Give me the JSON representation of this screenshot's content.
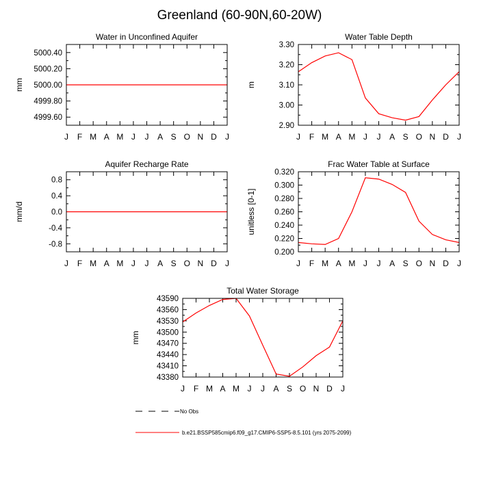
{
  "page": {
    "title": "Greenland (60-90N,60-20W)"
  },
  "chart_data": [
    {
      "type": "line",
      "title": "Water in Unconfined Aquifer",
      "ylabel": "mm",
      "categories": [
        "J",
        "F",
        "M",
        "A",
        "M",
        "J",
        "J",
        "A",
        "S",
        "O",
        "N",
        "D",
        "J"
      ],
      "ylim": [
        4999.5,
        5000.5
      ],
      "yticks": [
        4999.6,
        4999.8,
        5000.0,
        5000.2,
        5000.4
      ],
      "ytick_labels": [
        "4999.60",
        "4999.80",
        "5000.00",
        "5000.20",
        "5000.40"
      ],
      "series": [
        {
          "color": "#ff0000",
          "values": [
            5000,
            5000,
            5000,
            5000,
            5000,
            5000,
            5000,
            5000,
            5000,
            5000,
            5000,
            5000,
            5000
          ]
        }
      ]
    },
    {
      "type": "line",
      "title": "Water Table Depth",
      "ylabel": "m",
      "categories": [
        "J",
        "F",
        "M",
        "A",
        "M",
        "J",
        "J",
        "A",
        "S",
        "O",
        "N",
        "D",
        "J"
      ],
      "ylim": [
        2.9,
        3.3
      ],
      "yticks": [
        2.9,
        3.0,
        3.1,
        3.2,
        3.3
      ],
      "ytick_labels": [
        "2.90",
        "3.00",
        "3.10",
        "3.20",
        "3.30"
      ],
      "series": [
        {
          "color": "#ff0000",
          "values": [
            3.165,
            3.21,
            3.243,
            3.259,
            3.225,
            3.035,
            2.957,
            2.937,
            2.925,
            2.943,
            3.025,
            3.1,
            3.165
          ]
        }
      ]
    },
    {
      "type": "line",
      "title": "Aquifer Recharge Rate",
      "ylabel": "mm/d",
      "categories": [
        "J",
        "F",
        "M",
        "A",
        "M",
        "J",
        "J",
        "A",
        "S",
        "O",
        "N",
        "D",
        "J"
      ],
      "ylim": [
        -1.0,
        1.0
      ],
      "yticks": [
        -0.8,
        -0.4,
        0.0,
        0.4,
        0.8
      ],
      "ytick_labels": [
        "-0.8",
        "-0.4",
        "0.0",
        "0.4",
        "0.8"
      ],
      "series": [
        {
          "color": "#ff0000",
          "values": [
            0,
            0,
            0,
            0,
            0,
            0,
            0,
            0,
            0,
            0,
            0,
            0,
            0
          ]
        }
      ]
    },
    {
      "type": "line",
      "title": "Frac Water Table at Surface",
      "ylabel": "unitless [0-1]",
      "categories": [
        "J",
        "F",
        "M",
        "A",
        "M",
        "J",
        "J",
        "A",
        "S",
        "O",
        "N",
        "D",
        "J"
      ],
      "ylim": [
        0.2,
        0.32
      ],
      "yticks": [
        0.2,
        0.22,
        0.24,
        0.26,
        0.28,
        0.3,
        0.32
      ],
      "ytick_labels": [
        "0.200",
        "0.220",
        "0.240",
        "0.260",
        "0.280",
        "0.300",
        "0.320"
      ],
      "series": [
        {
          "color": "#ff0000",
          "values": [
            0.214,
            0.212,
            0.211,
            0.22,
            0.26,
            0.311,
            0.309,
            0.301,
            0.289,
            0.246,
            0.226,
            0.218,
            0.214
          ]
        }
      ]
    },
    {
      "type": "line",
      "title": "Total Water Storage",
      "ylabel": "mm",
      "categories": [
        "J",
        "F",
        "M",
        "A",
        "M",
        "J",
        "J",
        "A",
        "S",
        "O",
        "N",
        "D",
        "J"
      ],
      "ylim": [
        43380,
        43590
      ],
      "yticks": [
        43380,
        43410,
        43440,
        43470,
        43500,
        43530,
        43560,
        43590
      ],
      "ytick_labels": [
        "43380",
        "43410",
        "43440",
        "43470",
        "43500",
        "43530",
        "43560",
        "43590"
      ],
      "series": [
        {
          "color": "#ff0000",
          "values": [
            43527,
            43551,
            43571,
            43587,
            43590,
            43543,
            43465,
            43388,
            43382,
            43407,
            43437,
            43460,
            43530
          ]
        }
      ]
    }
  ],
  "legend": [
    {
      "label": "No Obs",
      "color": "#000000",
      "style": "dashed"
    },
    {
      "label": "b.e21.BSSP585cmip6.f09_g17.CMIP6-SSP5-8.5.101 (yrs 2075-2099)",
      "color": "#ff0000",
      "style": "solid"
    }
  ]
}
